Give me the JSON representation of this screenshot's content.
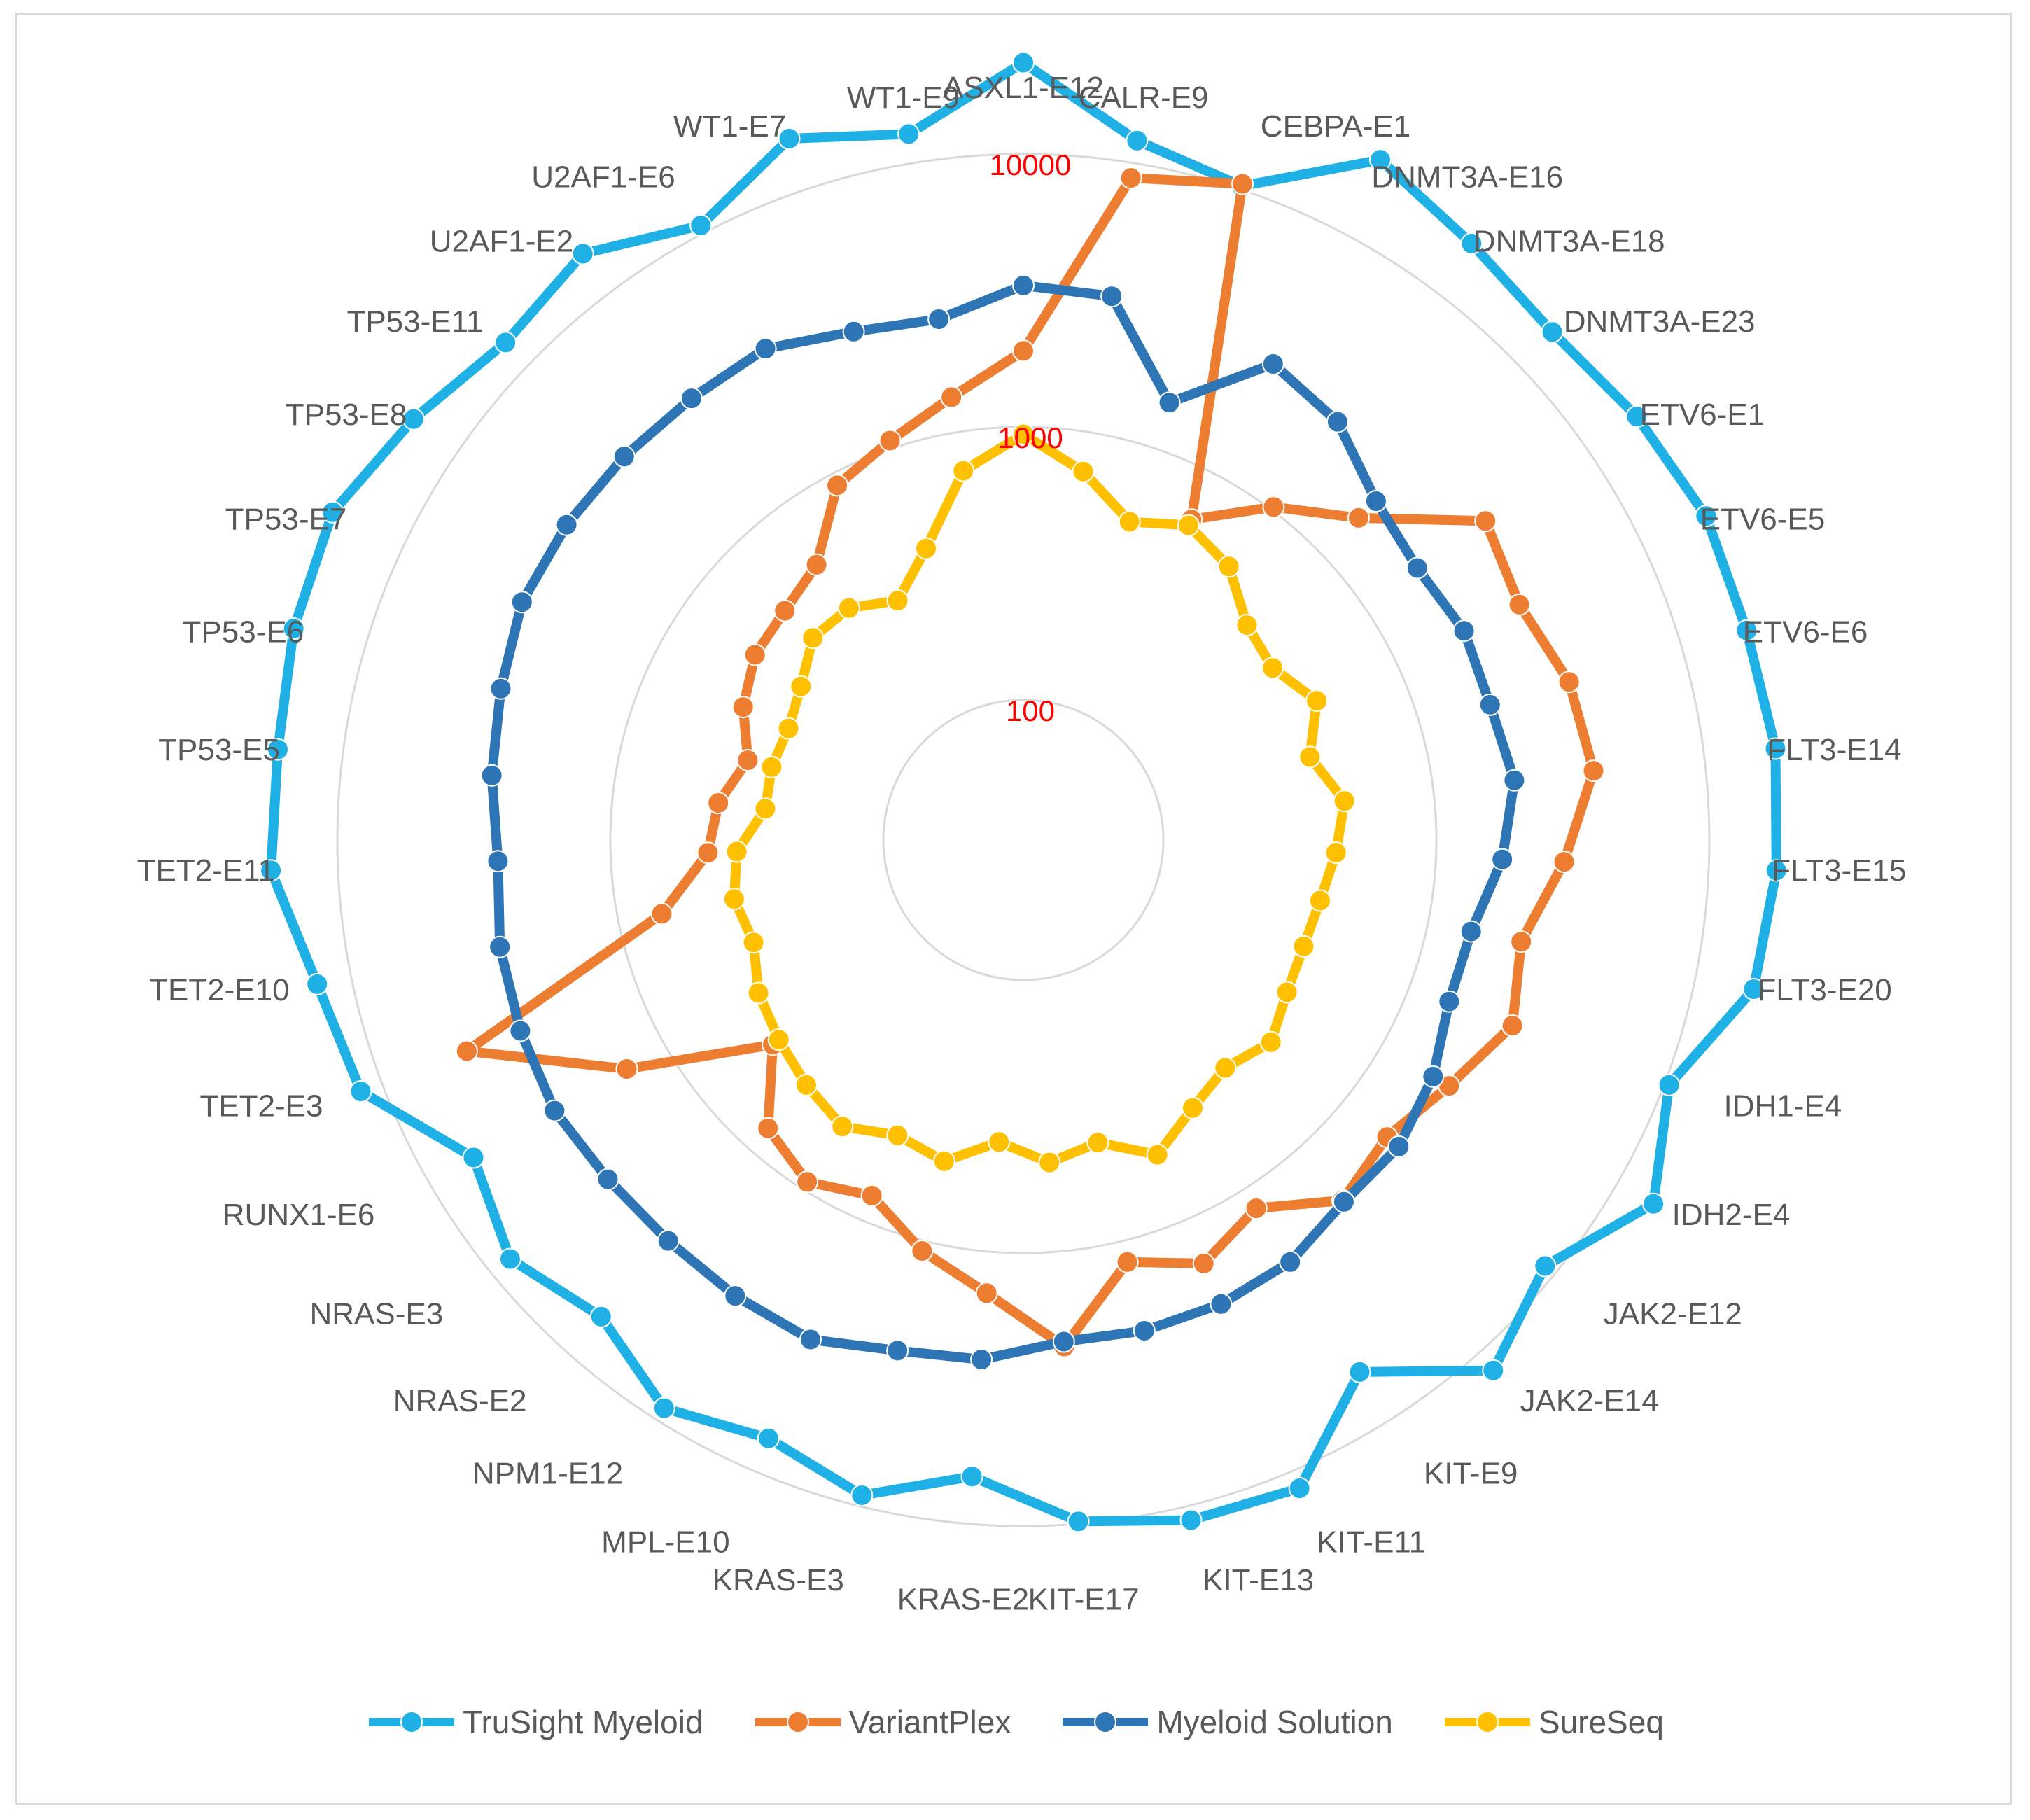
{
  "chart_data": {
    "type": "radar",
    "scale": "log",
    "ring_labels": [
      "100",
      "1000",
      "10000"
    ],
    "rings": [
      100,
      1000,
      10000
    ],
    "categories": [
      "ASXL1-E12",
      "CALR-E9",
      "CEBPA-E1",
      "DNMT3A-E16",
      "DNMT3A-E18",
      "DNMT3A-E23",
      "ETV6-E1",
      "ETV6-E5",
      "ETV6-E6",
      "FLT3-E14",
      "FLT3-E15",
      "FLT3-E20",
      "IDH1-E4",
      "IDH2-E4",
      "JAK2-E12",
      "JAK2-E14",
      "KIT-E9",
      "KIT-E11",
      "KIT-E13",
      "KIT-E17",
      "KRAS-E2",
      "KRAS-E3",
      "MPL-E10",
      "NPM1-E12",
      "NRAS-E2",
      "NRAS-E3",
      "RUNX1-E6",
      "TET2-E3",
      "TET2-E10",
      "TET2-E11",
      "TP53-E5",
      "TP53-E6",
      "TP53-E7",
      "TP53-E8",
      "TP53-E11",
      "U2AF1-E2",
      "U2AF1-E6",
      "WT1-E7",
      "WT1-E9"
    ],
    "grid": true,
    "legend_position": "bottom",
    "series": [
      {
        "name": "TruSight Myeloid",
        "color": "#1fb1e6",
        "values": [
          21600,
          12100,
          10300,
          20000,
          16600,
          14900,
          16500,
          18000,
          17600,
          18300,
          17700,
          16500,
          10400,
          14200,
          9000,
          12100,
          6200,
          11700,
          11300,
          9800,
          6700,
          9100,
          7400,
          8900,
          6600,
          8200,
          6500,
          12100,
          13400,
          17600,
          17300,
          18600,
          19400,
          15900,
          13100,
          14900,
          10700,
          15700,
          12800
        ]
      },
      {
        "name": "VariantPlex",
        "color": "#ed7d31",
        "values": [
          1900,
          8800,
          10500,
          650,
          1030,
          1550,
          3500,
          3150,
          3700,
          3900,
          2950,
          2230,
          2530,
          1940,
          1610,
          1780,
          1210,
          1490,
          1200,
          2230,
          1420,
          1090,
          800,
          930,
          790,
          470,
          1460,
          4650,
          690,
          440,
          410,
          345,
          420,
          480,
          500,
          560,
          900,
          1070,
          1350
        ]
      },
      {
        "name": "Myeloid Solution",
        "color": "#2e75b6",
        "values": [
          3300,
          3200,
          1500,
          2860,
          2530,
          1900,
          1740,
          1880,
          1850,
          1990,
          1750,
          1450,
          1430,
          1660,
          1830,
          1810,
          2070,
          2160,
          2180,
          2140,
          2490,
          2590,
          2990,
          2900,
          2810,
          2830,
          2950,
          2870,
          2780,
          2590,
          2810,
          3020,
          3310,
          3310,
          3270,
          3240,
          3310,
          2820,
          2630
        ]
      },
      {
        "name": "SureSeq",
        "color": "#ffc000",
        "values": [
          940,
          715,
          520,
          615,
          550,
          420,
          395,
          475,
          380,
          470,
          430,
          395,
          385,
          400,
          455,
          400,
          445,
          550,
          425,
          470,
          395,
          500,
          460,
          535,
          485,
          440,
          405,
          350,
          370,
          345,
          275,
          280,
          275,
          300,
          360,
          355,
          300,
          410,
          720
        ]
      }
    ]
  }
}
